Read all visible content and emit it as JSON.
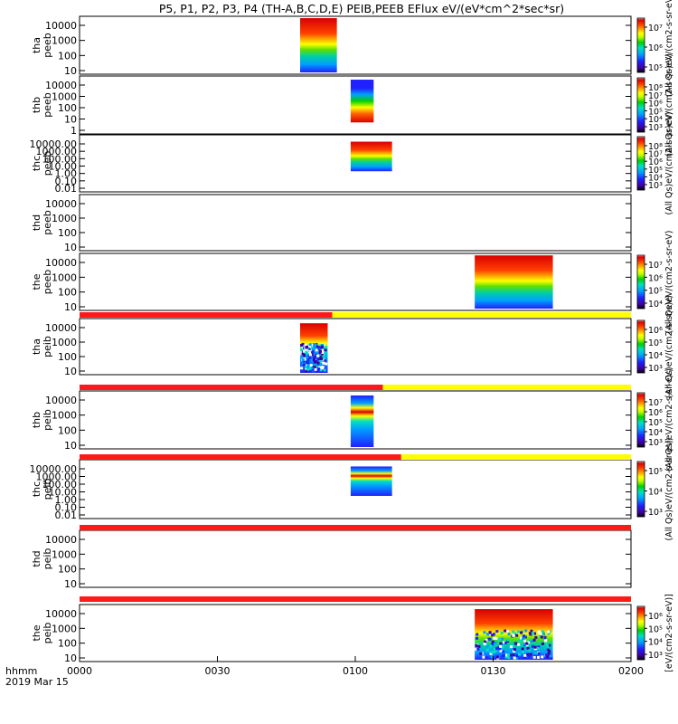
{
  "chart_data": {
    "type": "heatmap",
    "title": "P5, P1, P2, P3, P4 (TH-A,B,C,D,E) PEIB,PEEB EFlux eV/(eV*cm^2*sec*sr)",
    "x_label": "hhmm",
    "date_label": "2019 Mar 15",
    "x_ticks": [
      "0000",
      "0030",
      "0100",
      "0130",
      "0200"
    ],
    "x_tick_minutes": [
      0,
      30,
      60,
      90,
      120
    ],
    "x_range_minutes": [
      0,
      120
    ],
    "colormap": [
      "#000000",
      "#4000a0",
      "#2020ff",
      "#00a0ff",
      "#00e0c0",
      "#00d000",
      "#c0ff00",
      "#ffff00",
      "#ffa000",
      "#ff4000",
      "#d80000",
      "#ffffff"
    ],
    "panels": [
      {
        "ylabel": [
          "tha",
          "peeb"
        ],
        "yticks": [
          "10000",
          "1000",
          "100",
          "10"
        ],
        "colorbar_ticks": [
          "10⁷",
          "10⁶",
          "10⁵"
        ],
        "colorbar_label": "(All Qs)eV/(cm2-s-sr-eV)",
        "data_blocks": [
          {
            "t_start": 48,
            "t_end": 56,
            "e_low": 3,
            "e_high": 30000,
            "profile": "red_top"
          }
        ]
      },
      {
        "ylabel": [
          "thb",
          "peeb"
        ],
        "yticks": [
          "10000",
          "1000",
          "100",
          "10",
          "1"
        ],
        "colorbar_ticks": [
          "10⁸",
          "10⁷",
          "10⁶",
          "10⁵",
          "10⁴",
          "10³"
        ],
        "colorbar_label": "(All Qs)eV/(cm2-s-sr-eV)",
        "data_blocks": [
          {
            "t_start": 59,
            "t_end": 64,
            "e_low": 5,
            "e_high": 30000,
            "profile": "blue_top"
          }
        ]
      },
      {
        "ylabel": [
          "thc",
          "peeb"
        ],
        "yticks": [
          "10000.00",
          "1000.00",
          "100.00",
          "10.00",
          "1.00",
          "0.10",
          "0.01"
        ],
        "colorbar_ticks": [
          "10⁸",
          "10⁷",
          "10⁶",
          "10⁵",
          "10⁴",
          "10³"
        ],
        "colorbar_label": "(All Qs)eV/(cm2-s-sr-eV)",
        "data_blocks": [
          {
            "t_start": 59,
            "t_end": 68,
            "e_low": 2,
            "e_high": 20000,
            "profile": "red_top"
          }
        ]
      },
      {
        "ylabel": [
          "thd",
          "peeb"
        ],
        "yticks": [
          "10000",
          "1000",
          "100",
          "10"
        ],
        "colorbar_ticks": [],
        "colorbar_label": "(All Qs)eV/(cm2-s-sr-eV)",
        "data_blocks": []
      },
      {
        "ylabel": [
          "the",
          "peeb"
        ],
        "yticks": [
          "10000",
          "1000",
          "100",
          "10"
        ],
        "colorbar_ticks": [
          "10⁷",
          "10⁶",
          "10⁵",
          "10⁴"
        ],
        "colorbar_label": "(All Qs)eV/(cm2-s-sr-eV)",
        "data_blocks": [
          {
            "t_start": 86,
            "t_end": 103,
            "e_low": 5,
            "e_high": 30000,
            "profile": "red_top"
          }
        ]
      },
      {
        "ylabel": [
          "tha",
          "peib"
        ],
        "yticks": [
          "10000",
          "1000",
          "100",
          "10"
        ],
        "colorbar_ticks": [
          "10⁶",
          "10⁵",
          "10⁴",
          "10³"
        ],
        "colorbar_label": "(All Qs)eV/(cm2-s-sr-eV)",
        "data_blocks": [
          {
            "t_start": 48,
            "t_end": 54,
            "e_low": 5,
            "e_high": 20000,
            "profile": "speckle"
          }
        ]
      },
      {
        "ylabel": [
          "thb",
          "peib"
        ],
        "yticks": [
          "10000",
          "1000",
          "100",
          "10"
        ],
        "colorbar_ticks": [
          "10⁷",
          "10⁶",
          "10⁵",
          "10⁴",
          "10³"
        ],
        "colorbar_label": "(All Qs)eV/(cm2-s-sr-eV)",
        "data_blocks": [
          {
            "t_start": 59,
            "t_end": 64,
            "e_low": 5,
            "e_high": 20000,
            "profile": "band"
          }
        ]
      },
      {
        "ylabel": [
          "thc",
          "peib"
        ],
        "yticks": [
          "10000.00",
          "1000.00",
          "100.00",
          "10.00",
          "1.00",
          "0.10",
          "0.01"
        ],
        "colorbar_ticks": [
          "10⁵",
          "10⁴",
          "10³"
        ],
        "colorbar_label": "(All Qs)eV/(cm2-s-sr-eV)",
        "data_blocks": [
          {
            "t_start": 59,
            "t_end": 68,
            "e_low": 3,
            "e_high": 20000,
            "profile": "band"
          }
        ]
      },
      {
        "ylabel": [
          "thd",
          "peib"
        ],
        "yticks": [
          "10000",
          "1000",
          "100",
          "10"
        ],
        "colorbar_ticks": [],
        "colorbar_label": "(All Qs)eV/(cm2-s-sr-eV)",
        "data_blocks": []
      },
      {
        "ylabel": [
          "the",
          "peib"
        ],
        "yticks": [
          "10000",
          "1000",
          "100",
          "10"
        ],
        "colorbar_ticks": [
          "10⁶",
          "10⁵",
          "10⁴",
          "10³"
        ],
        "colorbar_label": "[eV/(cm2-s-sr-eV)]",
        "data_blocks": [
          {
            "t_start": 86,
            "t_end": 103,
            "e_low": 5,
            "e_high": 20000,
            "profile": "speckle_red"
          }
        ]
      }
    ],
    "mode_bars": [
      {
        "after_panel": 4,
        "red_until_minute": 55
      },
      {
        "after_panel": 5,
        "red_until_minute": 66
      },
      {
        "after_panel": 6,
        "red_until_minute": 70
      },
      {
        "after_panel": 7,
        "red_until_minute": 120
      },
      {
        "after_panel": 8,
        "red_until_minute": 120
      }
    ]
  }
}
